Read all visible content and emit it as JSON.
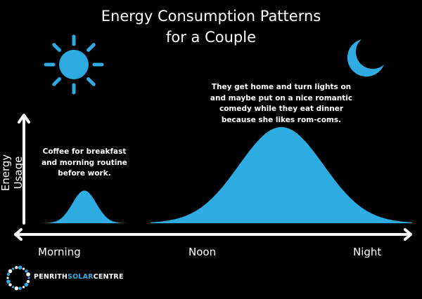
{
  "title_line1": "Energy Consumption Patterns",
  "title_line2": "for a Couple",
  "colors": {
    "accent": "#2EABE0",
    "background": "#000000",
    "text": "#FFFFFF"
  },
  "icons": {
    "morning": "sun-icon",
    "night": "crescent-moon-icon"
  },
  "chart_data": {
    "type": "area",
    "ylabel": "Energy Usage",
    "x_tick_labels": [
      "Morning",
      "Noon",
      "Night"
    ],
    "grid": false,
    "series": [
      {
        "period": "morning",
        "relative_peak": 0.34,
        "annotation": [
          "Coffee for breakfast",
          "and morning routine",
          "before work."
        ]
      },
      {
        "period": "evening",
        "relative_peak": 1.0,
        "annotation": [
          "They get home and turn lights on",
          "and maybe put on a nice romantic",
          "comedy while they eat dinner",
          "because she likes rom-coms."
        ]
      }
    ]
  },
  "logo": {
    "part1": "PENRITH",
    "part2": "SOLAR",
    "part3": "CENTRE"
  }
}
